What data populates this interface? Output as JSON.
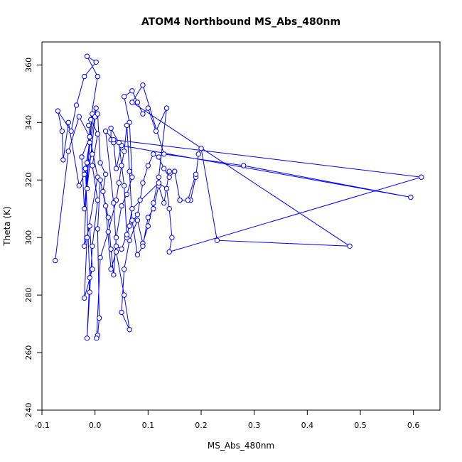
{
  "chart_data": {
    "type": "line",
    "title": "ATOM4 Northbound MS_Abs_480nm",
    "xlabel": "MS_Abs_480nm",
    "ylabel": "Theta (K)",
    "xlim": [
      -0.1,
      0.65
    ],
    "ylim": [
      240,
      368
    ],
    "xticks": [
      -0.1,
      0.0,
      0.1,
      0.2,
      0.3,
      0.4,
      0.5,
      0.6
    ],
    "xtick_labels": [
      "-0.1",
      "0.0",
      "0.1",
      "0.2",
      "0.3",
      "0.4",
      "0.5",
      "0.6"
    ],
    "yticks": [
      240,
      260,
      280,
      300,
      320,
      340,
      360
    ],
    "ytick_labels": [
      "240",
      "260",
      "280",
      "300",
      "320",
      "340",
      "360"
    ],
    "grid": false,
    "series_color": "#0000ff",
    "marker": "open-circle",
    "series": [
      {
        "points": [
          [
            -0.075,
            292
          ],
          [
            -0.05,
            330
          ],
          [
            -0.03,
            342
          ],
          [
            -0.01,
            335
          ],
          [
            0.005,
            321
          ],
          [
            -0.015,
            300
          ],
          [
            -0.02,
            279
          ],
          [
            -0.005,
            289
          ],
          [
            -0.01,
            304
          ],
          [
            -0.02,
            297
          ],
          [
            -0.015,
            326
          ],
          [
            -0.005,
            343
          ],
          [
            -0.02,
            310
          ],
          [
            -0.025,
            328
          ],
          [
            -0.01,
            335
          ],
          [
            -0.015,
            317
          ],
          [
            0.002,
            345
          ],
          [
            -0.012,
            339
          ],
          [
            -0.005,
            329
          ],
          [
            -0.018,
            324
          ],
          [
            -0.01,
            286
          ],
          [
            -0.015,
            265
          ],
          [
            -0.01,
            281
          ],
          [
            -0.005,
            297
          ],
          [
            0.005,
            313
          ],
          [
            -0.005,
            325
          ],
          [
            0.005,
            336
          ],
          [
            -0.008,
            341
          ],
          [
            0.005,
            356
          ],
          [
            -0.015,
            363
          ],
          [
            0.002,
            361
          ],
          [
            -0.02,
            356
          ],
          [
            -0.035,
            346
          ],
          [
            -0.045,
            337
          ],
          [
            -0.07,
            344
          ],
          [
            -0.062,
            337
          ],
          [
            -0.06,
            327
          ],
          [
            -0.05,
            340
          ],
          [
            -0.03,
            318
          ],
          [
            -0.02,
            322
          ],
          [
            -0.01,
            333
          ],
          [
            0.0,
            342
          ],
          [
            0.005,
            343
          ],
          [
            0.01,
            326
          ],
          [
            0.02,
            322
          ],
          [
            0.015,
            316
          ],
          [
            0.025,
            307
          ],
          [
            0.03,
            296
          ],
          [
            0.035,
            287
          ],
          [
            0.04,
            300
          ],
          [
            0.05,
            311
          ],
          [
            0.06,
            315
          ],
          [
            0.07,
            321
          ],
          [
            0.065,
            340
          ],
          [
            0.055,
            349
          ],
          [
            0.07,
            351
          ],
          [
            0.08,
            347
          ],
          [
            0.09,
            343
          ],
          [
            0.1,
            345
          ],
          [
            0.115,
            337
          ],
          [
            0.135,
            345
          ],
          [
            0.12,
            321
          ],
          [
            0.11,
            312
          ],
          [
            0.1,
            304
          ],
          [
            0.09,
            298
          ],
          [
            0.08,
            306
          ],
          [
            0.065,
            299
          ],
          [
            0.055,
            289
          ],
          [
            0.05,
            274
          ],
          [
            0.065,
            268
          ],
          [
            0.055,
            280
          ],
          [
            0.04,
            295
          ],
          [
            0.03,
            289
          ],
          [
            0.02,
            311
          ],
          [
            0.01,
            320
          ],
          [
            0.005,
            303
          ],
          [
            0.008,
            272
          ],
          [
            0.005,
            266
          ],
          [
            0.003,
            265
          ],
          [
            0.01,
            293
          ],
          [
            0.025,
            302
          ],
          [
            0.04,
            313
          ],
          [
            0.045,
            319
          ],
          [
            0.05,
            325
          ],
          [
            0.055,
            330
          ],
          [
            0.06,
            339
          ],
          [
            0.065,
            323
          ],
          [
            0.07,
            306
          ],
          [
            0.08,
            294
          ],
          [
            0.09,
            297
          ],
          [
            0.1,
            307
          ],
          [
            0.11,
            310
          ],
          [
            0.12,
            318
          ],
          [
            0.13,
            312
          ],
          [
            0.14,
            323
          ],
          [
            0.15,
            323
          ],
          [
            0.16,
            313
          ],
          [
            0.18,
            313
          ],
          [
            0.19,
            321
          ],
          [
            0.195,
            329
          ],
          [
            0.2,
            331
          ],
          [
            0.23,
            299
          ],
          [
            0.48,
            297
          ],
          [
            0.07,
            347
          ],
          [
            0.09,
            353
          ],
          [
            0.13,
            329
          ],
          [
            0.28,
            325
          ],
          [
            0.595,
            314
          ],
          [
            0.05,
            332
          ],
          [
            0.04,
            324
          ],
          [
            0.035,
            333
          ],
          [
            0.03,
            334
          ],
          [
            0.03,
            338
          ],
          [
            0.045,
            333
          ],
          [
            0.055,
            318
          ],
          [
            0.06,
            300
          ],
          [
            0.07,
            310
          ],
          [
            0.12,
            319
          ],
          [
            0.135,
            317
          ],
          [
            0.14,
            310
          ],
          [
            0.145,
            300
          ],
          [
            0.14,
            295
          ],
          [
            0.615,
            321
          ],
          [
            0.035,
            334
          ],
          [
            0.02,
            337
          ],
          [
            0.035,
            312
          ],
          [
            0.04,
            297
          ],
          [
            0.05,
            296
          ],
          [
            0.06,
            301
          ],
          [
            0.065,
            304
          ],
          [
            0.08,
            308
          ],
          [
            0.085,
            313
          ],
          [
            0.09,
            319
          ],
          [
            0.1,
            325
          ],
          [
            0.11,
            329
          ],
          [
            0.12,
            328
          ],
          [
            0.13,
            324
          ],
          [
            0.14,
            321
          ],
          [
            0.15,
            323
          ],
          [
            0.16,
            313
          ],
          [
            0.175,
            313
          ],
          [
            0.19,
            322
          ]
        ]
      }
    ]
  }
}
